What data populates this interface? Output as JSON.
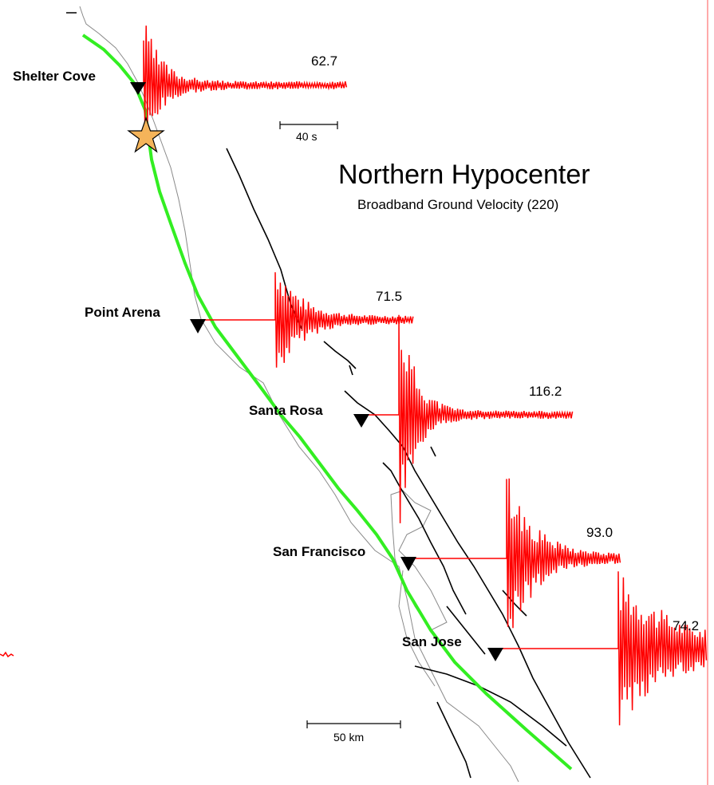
{
  "title": "Northern Hypocenter",
  "subtitle": "Broadband Ground Velocity (220)",
  "time_scale_label": "40 s",
  "distance_scale_label": "50 km",
  "colors": {
    "seismogram": "#ff0000",
    "fault_rupture": "#33ee22",
    "epicenter_star": "#f5b45a",
    "coastline": "#8a8a8a",
    "faults": "#000000",
    "station_marker": "#000000"
  },
  "icons": {
    "epicenter": "star-icon",
    "station": "triangle-down-icon"
  },
  "stations": [
    {
      "name": "Shelter Cove",
      "peak": "62.7"
    },
    {
      "name": "Point Arena",
      "peak": "71.5"
    },
    {
      "name": "Santa Rosa",
      "peak": "116.2"
    },
    {
      "name": "San Francisco",
      "peak": "93.0"
    },
    {
      "name": "San Jose",
      "peak": "74.2"
    }
  ]
}
